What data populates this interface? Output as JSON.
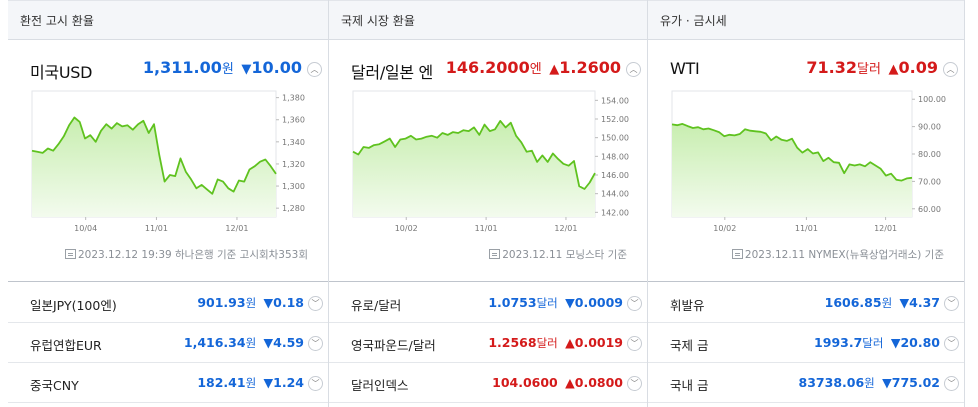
{
  "panels": [
    {
      "header": "환전 고시 환율",
      "name": "미국USD",
      "price": "1,311.00",
      "unit": "원",
      "direction": "down",
      "arrow": "▼",
      "change": "10.00",
      "footnote": "2023.12.12 19:39 하나은행 기준  고시회차353회",
      "chart_data": {
        "type": "area",
        "x_ticks": [
          "10/04",
          "11/01",
          "12/01"
        ],
        "y_ticks": [
          "1,380",
          "1,360",
          "1,340",
          "1,320",
          "1,300",
          "1,280"
        ],
        "ylim": [
          1272,
          1386
        ],
        "values": [
          1332,
          1331,
          1330,
          1334,
          1332,
          1338,
          1345,
          1355,
          1362,
          1358,
          1343,
          1346,
          1340,
          1350,
          1356,
          1352,
          1357,
          1354,
          1355,
          1351,
          1356,
          1359,
          1348,
          1356,
          1328,
          1304,
          1310,
          1309,
          1325,
          1313,
          1306,
          1298,
          1301,
          1297,
          1293,
          1306,
          1304,
          1298,
          1295,
          1305,
          1304,
          1315,
          1318,
          1322,
          1324,
          1318,
          1311
        ]
      }
    },
    {
      "header": "국제 시장 환율",
      "name": "달러/일본 엔",
      "price": "146.2000",
      "unit": "엔",
      "direction": "up",
      "arrow": "▲",
      "change": "1.2600",
      "footnote": "2023.12.11 모닝스타 기준",
      "chart_data": {
        "type": "area",
        "x_ticks": [
          "10/02",
          "11/01",
          "12/01"
        ],
        "y_ticks": [
          "154.00",
          "152.00",
          "150.00",
          "148.00",
          "146.00",
          "144.00",
          "142.00"
        ],
        "ylim": [
          141.5,
          155
        ],
        "values": [
          148.5,
          148.2,
          149.0,
          148.9,
          149.2,
          149.3,
          149.6,
          149.9,
          149.0,
          149.8,
          149.9,
          150.2,
          149.8,
          149.9,
          150.1,
          150.2,
          150.0,
          150.5,
          150.3,
          150.6,
          150.5,
          150.8,
          150.7,
          151.1,
          150.3,
          151.4,
          150.7,
          150.9,
          151.8,
          151.1,
          151.6,
          150.2,
          149.5,
          148.5,
          148.6,
          147.4,
          148.1,
          147.4,
          148.3,
          147.7,
          147.2,
          147.0,
          147.5,
          144.8,
          144.5,
          145.2,
          146.2
        ]
      }
    },
    {
      "header": "유가 · 금시세",
      "name": "WTI",
      "price": "71.32",
      "unit": "달러",
      "direction": "up",
      "arrow": "▲",
      "change": "0.09",
      "footnote": "2023.12.11 NYMEX(뉴욕상업거래소) 기준",
      "chart_data": {
        "type": "area",
        "x_ticks": [
          "10/02",
          "11/01",
          "12/01"
        ],
        "y_ticks": [
          "100.00",
          "90.00",
          "80.00",
          "70.00",
          "60.00"
        ],
        "ylim": [
          57,
          103
        ],
        "values": [
          90.8,
          90.5,
          91.0,
          90.2,
          89.5,
          89.8,
          89.0,
          89.3,
          88.7,
          88.0,
          86.5,
          87.0,
          86.8,
          87.3,
          89.0,
          88.5,
          88.3,
          88.1,
          87.5,
          85.0,
          86.4,
          85.2,
          84.8,
          85.6,
          82.3,
          80.5,
          81.8,
          80.2,
          80.6,
          77.4,
          78.6,
          77.0,
          76.8,
          73.0,
          76.2,
          75.8,
          76.2,
          75.5,
          77.0,
          75.8,
          74.6,
          72.1,
          72.8,
          70.6,
          70.3,
          71.1,
          71.3
        ]
      }
    }
  ],
  "rows": [
    [
      {
        "name": "일본JPY(100엔)",
        "price": "901.93",
        "unit": "원",
        "dir": "down",
        "arrow": "▼",
        "change": "0.18"
      },
      {
        "name": "유럽연합EUR",
        "price": "1,416.34",
        "unit": "원",
        "dir": "down",
        "arrow": "▼",
        "change": "4.59"
      },
      {
        "name": "중국CNY",
        "price": "182.41",
        "unit": "원",
        "dir": "down",
        "arrow": "▼",
        "change": "1.24"
      }
    ],
    [
      {
        "name": "유로/달러",
        "price": "1.0753",
        "unit": "달러",
        "dir": "down",
        "arrow": "▼",
        "change": "0.0009"
      },
      {
        "name": "영국파운드/달러",
        "price": "1.2568",
        "unit": "달러",
        "dir": "up",
        "arrow": "▲",
        "change": "0.0019"
      },
      {
        "name": "달러인덱스",
        "price": "104.0600",
        "unit": "",
        "dir": "up",
        "arrow": "▲",
        "change": "0.0800"
      }
    ],
    [
      {
        "name": "휘발유",
        "price": "1606.85",
        "unit": "원",
        "dir": "down",
        "arrow": "▼",
        "change": "4.37"
      },
      {
        "name": "국제 금",
        "price": "1993.7",
        "unit": "달러",
        "dir": "down",
        "arrow": "▼",
        "change": "20.80"
      },
      {
        "name": "국내 금",
        "price": "83738.06",
        "unit": "원",
        "dir": "down",
        "arrow": "▼",
        "change": "775.02"
      }
    ]
  ],
  "colors": {
    "up": "#d41a1a",
    "down": "#1466d8",
    "line": "#5fc21f",
    "fill_top": "#c8eeb0",
    "fill_bottom": "#f3fbee"
  },
  "icons": {
    "collapse": "chevron-up-icon",
    "expand": "chevron-down-icon",
    "source": "document-icon"
  }
}
